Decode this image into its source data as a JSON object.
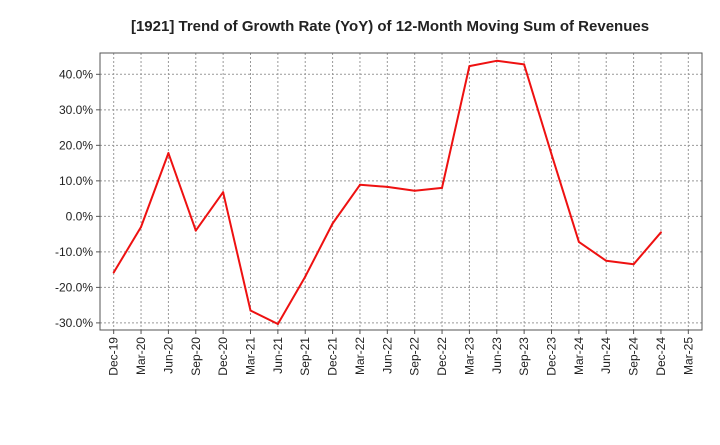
{
  "chart_data": {
    "type": "line",
    "title": "[1921]  Trend of Growth Rate (YoY) of 12-Month Moving Sum of Revenues",
    "xlabel": "",
    "ylabel": "",
    "x_tick_labels": [
      "Dec-19",
      "Mar-20",
      "Jun-20",
      "Sep-20",
      "Dec-20",
      "Mar-21",
      "Jun-21",
      "Sep-21",
      "Dec-21",
      "Mar-22",
      "Jun-22",
      "Sep-22",
      "Dec-22",
      "Mar-23",
      "Jun-23",
      "Sep-23",
      "Dec-23",
      "Mar-24",
      "Jun-24",
      "Sep-24",
      "Dec-24",
      "Mar-25"
    ],
    "y_ticks": [
      -30,
      -20,
      -10,
      0,
      10,
      20,
      30,
      40
    ],
    "y_tick_labels": [
      "-30.0%",
      "-20.0%",
      "-10.0%",
      "0.0%",
      "10.0%",
      "20.0%",
      "30.0%",
      "40.0%"
    ],
    "ylim": [
      -32,
      46
    ],
    "grid": true,
    "color": "#ee1111",
    "series": [
      {
        "x": [
          "Dec-19",
          "Mar-20",
          "Jun-20",
          "Sep-20",
          "Dec-20",
          "Mar-21",
          "Jun-21",
          "Sep-21",
          "Dec-21",
          "Mar-22",
          "Jun-22",
          "Sep-22",
          "Dec-22",
          "Mar-23",
          "Jun-23",
          "Sep-23",
          "Dec-23",
          "Mar-24",
          "Jun-24",
          "Sep-24",
          "Dec-24"
        ],
        "values": [
          -15.8,
          -3.0,
          17.8,
          -4.0,
          6.8,
          -26.5,
          -30.3,
          -17.0,
          -2.0,
          8.9,
          8.3,
          7.2,
          8.0,
          42.3,
          43.8,
          42.8,
          17.5,
          -7.2,
          -12.5,
          -13.5,
          -4.5
        ]
      }
    ]
  }
}
